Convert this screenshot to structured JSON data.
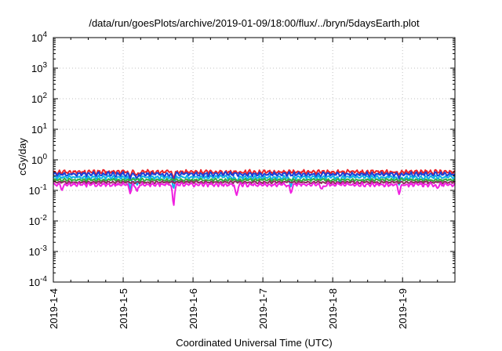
{
  "chart_data": {
    "type": "line",
    "title": "/data/run/goesPlots/archive/2019-01-09/18:00/flux/../bryn/5daysEarth.plot",
    "xlabel": "Coordinated Universal Time (UTC)",
    "ylabel": "cGy/day",
    "yscale": "log",
    "ylim": [
      0.0001,
      10000
    ],
    "xlim": [
      "2019-01-04 00:00",
      "2019-01-09 18:00"
    ],
    "grid": true,
    "y_tick_labels": [
      {
        "base": "10",
        "exp": "-4"
      },
      {
        "base": "10",
        "exp": "-3"
      },
      {
        "base": "10",
        "exp": "-2"
      },
      {
        "base": "10",
        "exp": "-1"
      },
      {
        "base": "10",
        "exp": "0"
      },
      {
        "base": "10",
        "exp": "1"
      },
      {
        "base": "10",
        "exp": "2"
      },
      {
        "base": "10",
        "exp": "3"
      },
      {
        "base": "10",
        "exp": "4"
      }
    ],
    "x_tick_labels": [
      "2019-1-4",
      "2019-1-5",
      "2019-1-6",
      "2019-1-7",
      "2019-1-8",
      "2019-1-9"
    ],
    "x_tick_days": [
      0,
      1,
      2,
      3,
      4,
      5
    ],
    "x_end_day": 5.75,
    "series": [
      {
        "color": "#e8232a",
        "base": 0.4,
        "amp": 0.045,
        "dips": [
          [
            1.1,
            0.82
          ],
          [
            1.2,
            0.8
          ],
          [
            1.72,
            0.7
          ],
          [
            4.95,
            0.85
          ]
        ]
      },
      {
        "color": "#1c3fd6",
        "base": 0.34,
        "amp": 0.04,
        "dips": [
          [
            1.1,
            0.8
          ],
          [
            1.2,
            0.78
          ],
          [
            1.72,
            0.65
          ],
          [
            4.95,
            0.82
          ]
        ]
      },
      {
        "color": "#10b0e8",
        "base": 0.27,
        "amp": 0.025,
        "dips": [
          [
            1.1,
            0.42
          ],
          [
            1.2,
            0.5
          ],
          [
            1.72,
            0.45
          ],
          [
            2.62,
            0.7
          ],
          [
            3.4,
            0.55
          ],
          [
            4.1,
            0.7
          ],
          [
            4.95,
            0.6
          ]
        ]
      },
      {
        "color": "#30b040",
        "base": 0.22,
        "amp": 0.015,
        "dips": []
      },
      {
        "color": "#8c2f5c",
        "base": 0.185,
        "amp": 0.012,
        "dips": []
      },
      {
        "color": "#f020e0",
        "base": 0.155,
        "amp": 0.015,
        "dips": [
          [
            0.12,
            0.72
          ],
          [
            1.1,
            0.55
          ],
          [
            1.2,
            0.6
          ],
          [
            1.72,
            0.22
          ],
          [
            2.62,
            0.45
          ],
          [
            3.4,
            0.55
          ],
          [
            3.85,
            0.75
          ],
          [
            4.95,
            0.5
          ],
          [
            5.5,
            0.8
          ]
        ]
      }
    ]
  }
}
